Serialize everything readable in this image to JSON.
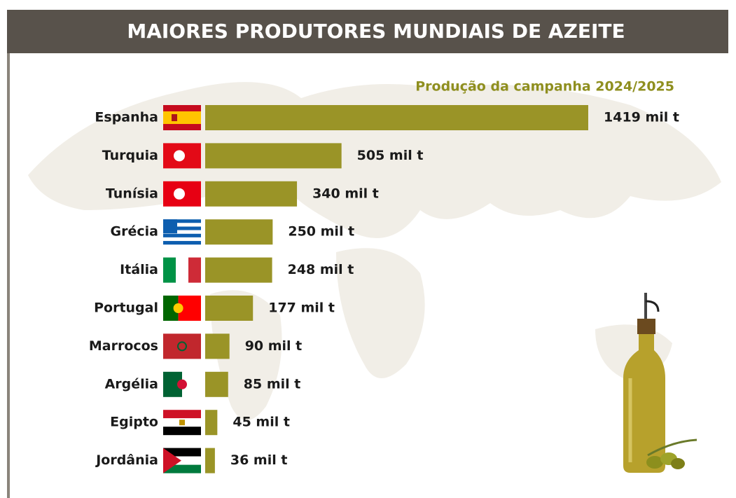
{
  "chart_data": {
    "type": "bar",
    "orientation": "horizontal",
    "title": "MAIORES PRODUTORES MUNDIAIS DE AZEITE",
    "subtitle": "Produção da campanha 2024/2025",
    "categories": [
      "Espanha",
      "Turquia",
      "Tunísia",
      "Grécia",
      "Itália",
      "Portugal",
      "Marrocos",
      "Argélia",
      "Egipto",
      "Jordânia"
    ],
    "values": [
      1419,
      505,
      340,
      250,
      248,
      177,
      90,
      85,
      45,
      36
    ],
    "value_labels": [
      "1419 mil t",
      "505 mil t",
      "340 mil t",
      "250 mil t",
      "248 mil t",
      "177 mil t",
      "90 mil t",
      "85 mil t",
      "45 mil t",
      "36 mil t"
    ],
    "color": "#9a9427"
  }
}
